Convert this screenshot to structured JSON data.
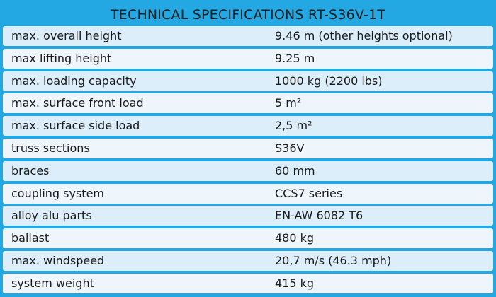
{
  "title": "TECHNICAL SPECIFICATIONS RT-S36V-1T",
  "specs": [
    {
      "label": "max. overall height",
      "value": "9.46 m (other heights optional)"
    },
    {
      "label": "max lifting height",
      "value": "9.25 m"
    },
    {
      "label": "max. loading capacity",
      "value": "1000 kg (2200 lbs)"
    },
    {
      "label": "max. surface front load",
      "value": "5 m²"
    },
    {
      "label": "max. surface side load",
      "value": "2,5 m²"
    },
    {
      "label": "truss sections",
      "value": "S36V"
    },
    {
      "label": "braces",
      "value": "60 mm"
    },
    {
      "label": "coupling system",
      "value": "CCS7 series"
    },
    {
      "label": "alloy alu parts",
      "value": "EN-AW 6082 T6"
    },
    {
      "label": "ballast",
      "value": "480 kg"
    },
    {
      "label": "max. windspeed",
      "value": "20,7 m/s (46.3 mph)"
    },
    {
      "label": "system weight",
      "value": "415 kg"
    }
  ],
  "colors": {
    "background": "#24a8e3",
    "row_odd": "#dceef9",
    "row_even": "#eef6fc",
    "text": "#1a1a1a"
  }
}
